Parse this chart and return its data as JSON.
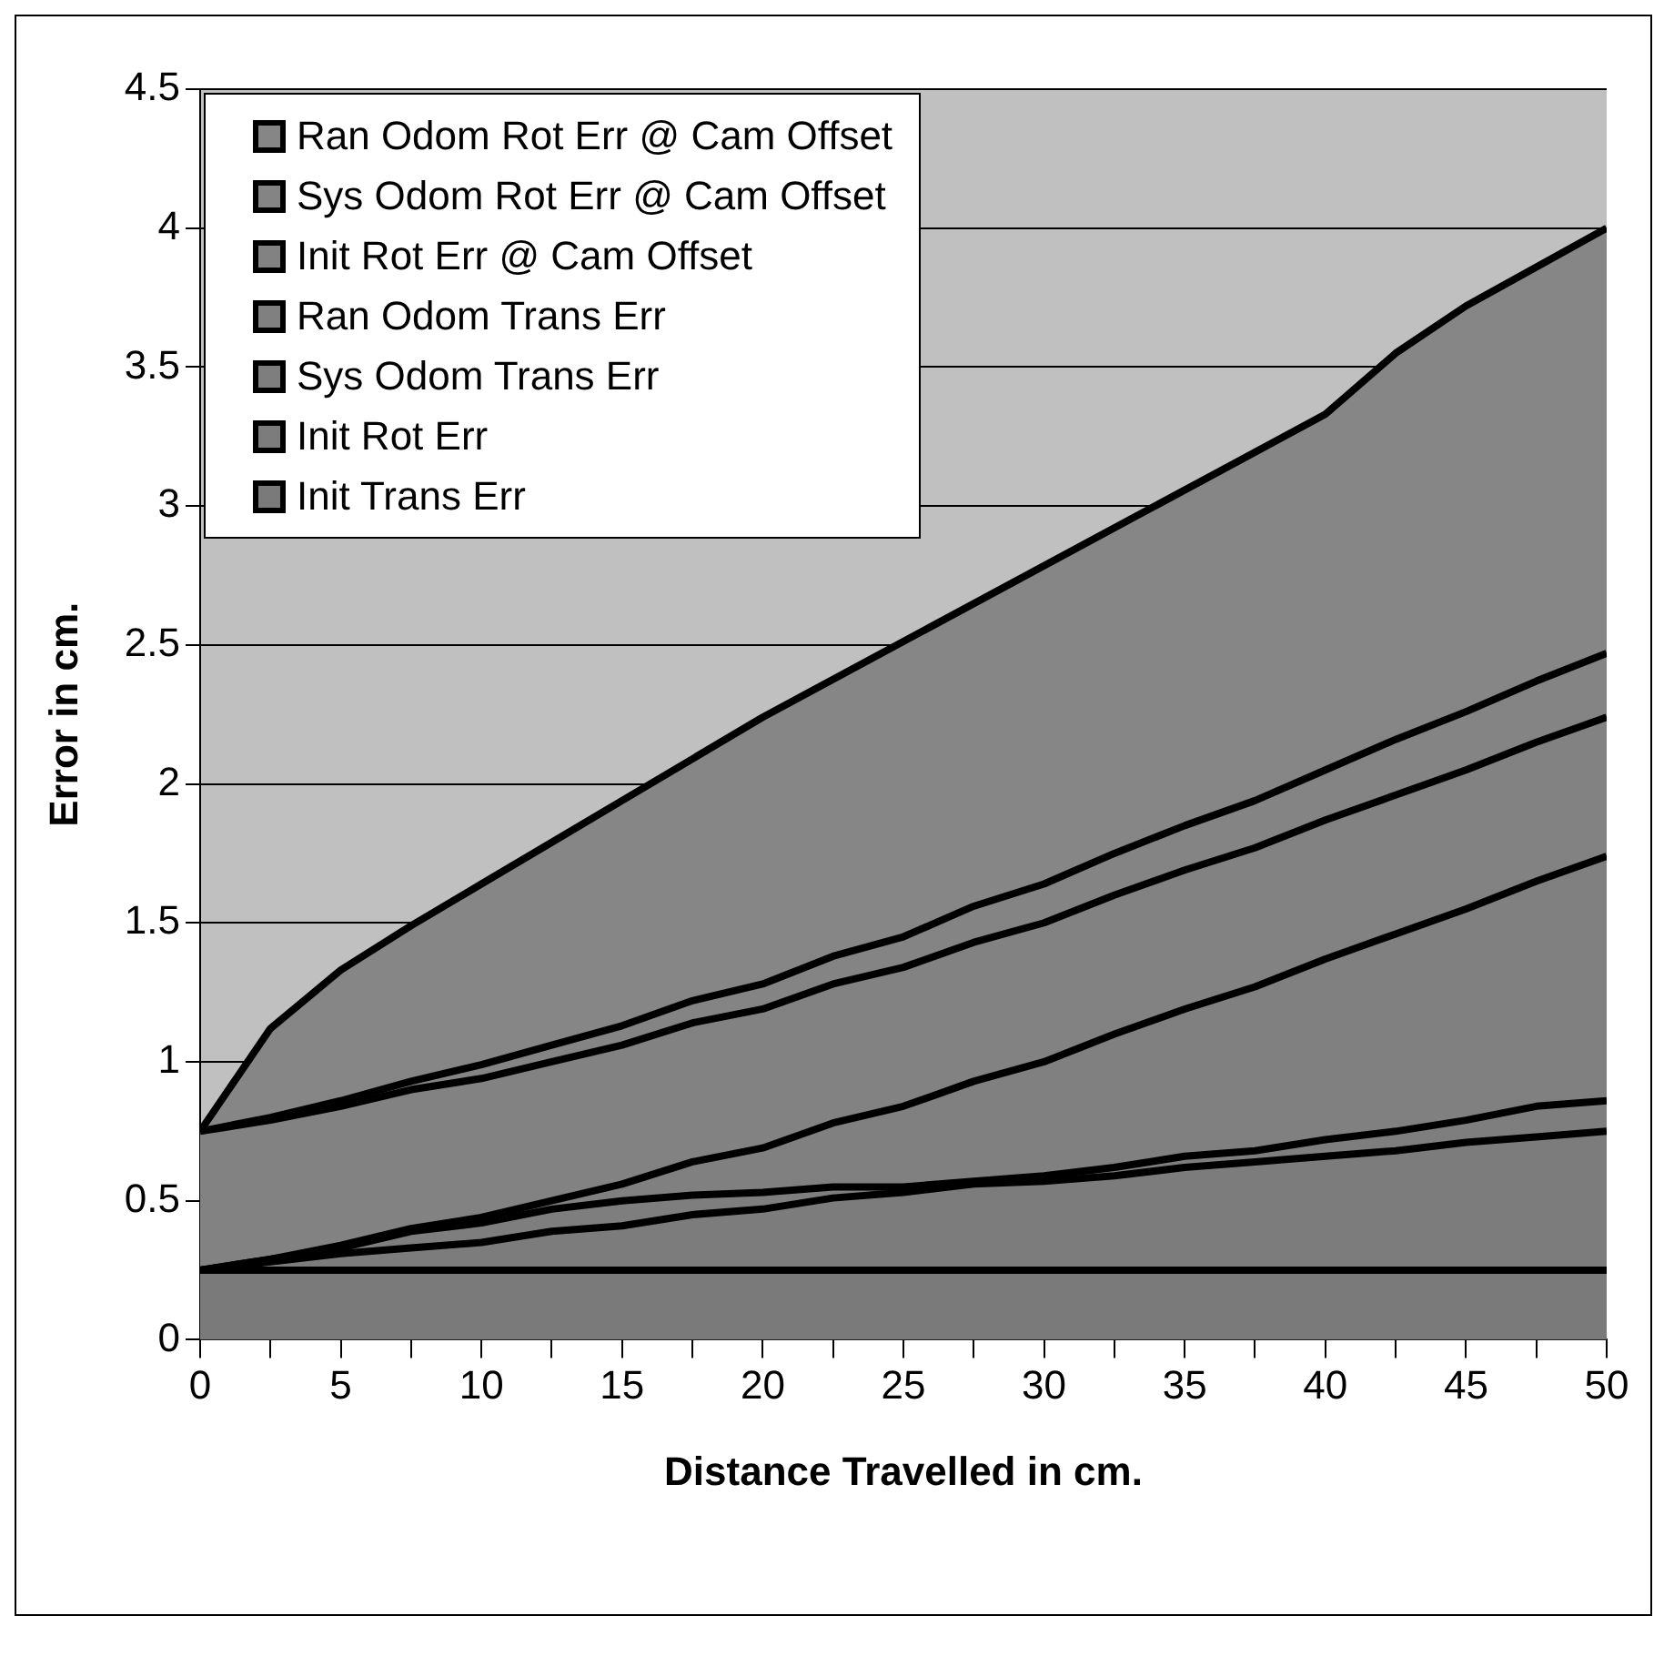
{
  "chart_data": {
    "type": "area",
    "stacked": true,
    "xlabel": "Distance Travelled in cm.",
    "ylabel": "Error in cm.",
    "x": [
      0,
      2.5,
      5,
      7.5,
      10,
      12.5,
      15,
      17.5,
      20,
      22.5,
      25,
      27.5,
      30,
      32.5,
      35,
      37.5,
      40,
      42.5,
      45,
      47.5,
      50
    ],
    "xlim": [
      0,
      50
    ],
    "xticks": [
      0,
      {
        "value": 2.5,
        "label": null
      },
      5,
      {
        "value": 7.5,
        "label": null
      },
      10,
      {
        "value": 12.5,
        "label": null
      },
      15,
      {
        "value": 17.5,
        "label": null
      },
      20,
      {
        "value": 22.5,
        "label": null
      },
      25,
      {
        "value": 27.5,
        "label": null
      },
      30,
      {
        "value": 32.5,
        "label": null
      },
      35,
      {
        "value": 37.5,
        "label": null
      },
      40,
      {
        "value": 42.5,
        "label": null
      },
      45,
      {
        "value": 47.5,
        "label": null
      },
      50
    ],
    "ylim": [
      0,
      4.5
    ],
    "yticks": [
      0,
      0.5,
      1,
      1.5,
      2,
      2.5,
      3,
      3.5,
      4,
      4.5
    ],
    "grid": "y",
    "legend": "top left",
    "series": [
      {
        "name": "Init Trans Err",
        "color": "#7a7a7a",
        "values": [
          0.25,
          0.25,
          0.25,
          0.25,
          0.25,
          0.25,
          0.25,
          0.25,
          0.25,
          0.25,
          0.25,
          0.25,
          0.25,
          0.25,
          0.25,
          0.25,
          0.25,
          0.25,
          0.25,
          0.25,
          0.25
        ]
      },
      {
        "name": "Init Rot Err",
        "color": "#7c7c7c",
        "values": [
          0,
          0.03,
          0.06,
          0.08,
          0.1,
          0.14,
          0.16,
          0.2,
          0.22,
          0.26,
          0.28,
          0.31,
          0.32,
          0.34,
          0.37,
          0.39,
          0.41,
          0.43,
          0.46,
          0.48,
          0.5
        ]
      },
      {
        "name": "Sys Odom Trans Err",
        "color": "#7e7e7e",
        "values": [
          0,
          0.01,
          0.02,
          0.06,
          0.07,
          0.08,
          0.09,
          0.07,
          0.06,
          0.04,
          0.02,
          0.01,
          0.02,
          0.03,
          0.04,
          0.04,
          0.06,
          0.07,
          0.08,
          0.11,
          0.11
        ]
      },
      {
        "name": "Ran Odom Trans Err",
        "color": "#808080",
        "values": [
          0,
          0,
          0.01,
          0.01,
          0.02,
          0.03,
          0.06,
          0.12,
          0.16,
          0.23,
          0.29,
          0.36,
          0.41,
          0.48,
          0.53,
          0.59,
          0.65,
          0.71,
          0.76,
          0.81,
          0.88
        ]
      },
      {
        "name": "Init Rot Err @ Cam Offset",
        "color": "#828282",
        "values": [
          0.5,
          0.5,
          0.5,
          0.5,
          0.5,
          0.5,
          0.5,
          0.5,
          0.5,
          0.5,
          0.5,
          0.5,
          0.5,
          0.5,
          0.5,
          0.5,
          0.5,
          0.5,
          0.5,
          0.5,
          0.5
        ]
      },
      {
        "name": "Sys Odom Rot Err @ Cam Offset",
        "color": "#848484",
        "values": [
          0,
          0.01,
          0.02,
          0.03,
          0.05,
          0.06,
          0.07,
          0.08,
          0.09,
          0.1,
          0.11,
          0.13,
          0.14,
          0.15,
          0.16,
          0.17,
          0.18,
          0.2,
          0.21,
          0.22,
          0.23
        ]
      },
      {
        "name": "Ran Odom Rot Err @ Cam Offset",
        "color": "#868686",
        "values": [
          0,
          0.32,
          0.47,
          0.56,
          0.65,
          0.73,
          0.81,
          0.87,
          0.96,
          null,
          null,
          null,
          null,
          null,
          null,
          null,
          1.28,
          1.39,
          1.46,
          1.49,
          1.53
        ]
      }
    ]
  }
}
